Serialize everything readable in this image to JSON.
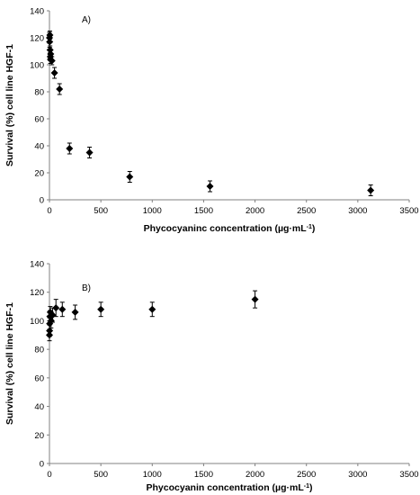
{
  "chart_data": [
    {
      "type": "scatter",
      "panel_label": "A)",
      "xlabel": "Phycocyaninc concentration (µg·mL",
      "xlabel_sup": "-1",
      "xlabel_close": ")",
      "ylabel": "Survival (%) cell line HGF-1",
      "xlim": [
        0,
        3500
      ],
      "ylim": [
        0,
        140
      ],
      "xticks": [
        0,
        500,
        1000,
        1500,
        2000,
        2500,
        3000,
        3500
      ],
      "yticks": [
        0,
        20,
        40,
        60,
        80,
        100,
        120,
        140
      ],
      "grid": false,
      "marker": "diamond",
      "color": "#000000",
      "points": [
        {
          "x": 0,
          "y": 120,
          "err": 4
        },
        {
          "x": 2,
          "y": 117,
          "err": 4
        },
        {
          "x": 4,
          "y": 122,
          "err": 3
        },
        {
          "x": 6,
          "y": 111,
          "err": 3
        },
        {
          "x": 8,
          "y": 106,
          "err": 3
        },
        {
          "x": 10,
          "y": 104,
          "err": 3
        },
        {
          "x": 12,
          "y": 108,
          "err": 3
        },
        {
          "x": 24,
          "y": 103,
          "err": 3
        },
        {
          "x": 49,
          "y": 94,
          "err": 4
        },
        {
          "x": 98,
          "y": 82,
          "err": 4
        },
        {
          "x": 195,
          "y": 38,
          "err": 4
        },
        {
          "x": 390,
          "y": 35,
          "err": 4
        },
        {
          "x": 781,
          "y": 17,
          "err": 4
        },
        {
          "x": 1562,
          "y": 10,
          "err": 4
        },
        {
          "x": 3125,
          "y": 7,
          "err": 4
        }
      ]
    },
    {
      "type": "scatter",
      "panel_label": "B)",
      "xlabel": "Phycocyanin concentration (µg·mL",
      "xlabel_sup": "-1",
      "xlabel_close": ")",
      "ylabel": "Survival (%) cell line HGF-1",
      "xlim": [
        0,
        3500
      ],
      "ylim": [
        0,
        140
      ],
      "xticks": [
        0,
        500,
        1000,
        1500,
        2000,
        2500,
        3000,
        3500
      ],
      "yticks": [
        0,
        20,
        40,
        60,
        80,
        100,
        120,
        140
      ],
      "grid": false,
      "marker": "diamond",
      "color": "#000000",
      "points": [
        {
          "x": 0,
          "y": 90,
          "err": 4
        },
        {
          "x": 1,
          "y": 93,
          "err": 4
        },
        {
          "x": 2,
          "y": 98,
          "err": 4
        },
        {
          "x": 4,
          "y": 103,
          "err": 4
        },
        {
          "x": 8,
          "y": 106,
          "err": 4
        },
        {
          "x": 16,
          "y": 100,
          "err": 5
        },
        {
          "x": 31,
          "y": 104,
          "err": 5
        },
        {
          "x": 63,
          "y": 109,
          "err": 6
        },
        {
          "x": 125,
          "y": 108,
          "err": 5
        },
        {
          "x": 250,
          "y": 106,
          "err": 5
        },
        {
          "x": 500,
          "y": 108,
          "err": 5
        },
        {
          "x": 1000,
          "y": 108,
          "err": 5
        },
        {
          "x": 2000,
          "y": 115,
          "err": 6
        }
      ]
    }
  ]
}
